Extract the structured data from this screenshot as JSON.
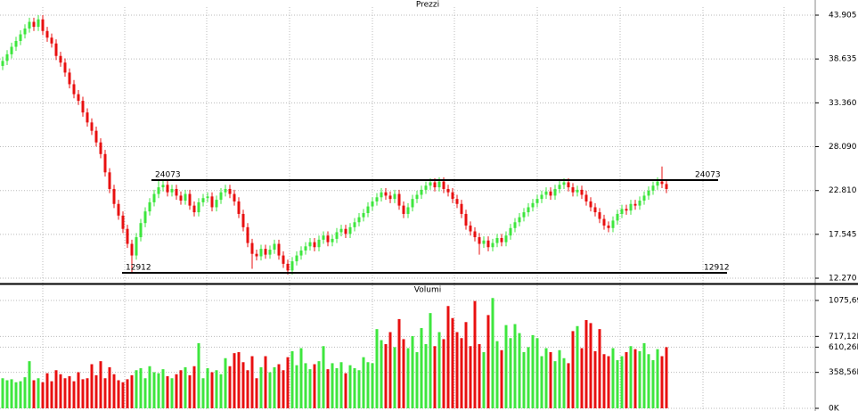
{
  "chart_data": [
    {
      "type": "candlestick",
      "title": "Prezzi",
      "open": [
        37.8,
        38.4,
        39.2,
        40.1,
        40.8,
        41.6,
        42.3,
        43.1,
        42.5,
        43.4,
        42.0,
        41.2,
        40.5,
        39.0,
        38.2,
        37.0,
        35.6,
        34.4,
        33.6,
        32.2,
        31.0,
        30.0,
        28.6,
        27.2,
        25.0,
        23.0,
        21.2,
        19.8,
        18.2,
        16.4,
        15.0,
        17.2,
        18.9,
        20.3,
        21.4,
        22.4,
        23.2,
        23.5,
        22.6,
        23.0,
        22.2,
        21.6,
        22.4,
        21.0,
        20.2,
        21.4,
        21.9,
        22.1,
        20.8,
        21.7,
        22.6,
        23.0,
        22.4,
        21.5,
        20.0,
        18.4,
        16.5,
        15.2,
        14.9,
        15.8,
        15.1,
        15.7,
        16.4,
        15.0,
        14.0,
        13.2,
        14.3,
        15.0,
        15.6,
        16.1,
        16.6,
        16.0,
        16.9,
        17.4,
        16.6,
        17.0,
        17.8,
        18.2,
        17.6,
        18.4,
        19.0,
        19.6,
        20.1,
        20.9,
        21.5,
        22.0,
        22.6,
        22.2,
        21.8,
        22.4,
        21.0,
        20.0,
        20.8,
        21.8,
        22.3,
        22.9,
        23.4,
        23.8,
        23.2,
        23.9,
        23.0,
        22.6,
        21.8,
        21.2,
        20.0,
        18.6,
        17.9,
        17.2,
        16.4,
        16.8,
        16.0,
        16.5,
        17.1,
        16.6,
        17.4,
        18.3,
        19.0,
        19.6,
        20.2,
        20.8,
        21.3,
        21.8,
        22.3,
        22.7,
        22.2,
        23.0,
        23.5,
        23.8,
        23.2,
        22.6,
        22.9,
        22.3,
        21.5,
        20.8,
        20.2,
        19.4,
        18.6,
        18.3,
        19.2,
        20.0,
        20.6,
        20.4,
        21.2,
        21.0,
        21.6,
        22.2,
        22.8,
        23.4,
        23.9,
        23.6
      ],
      "high": [
        38.9,
        39.7,
        40.6,
        41.3,
        42.1,
        42.8,
        43.6,
        43.6,
        43.9,
        43.9,
        42.5,
        41.7,
        41.0,
        39.5,
        38.7,
        37.5,
        36.1,
        34.9,
        34.1,
        32.7,
        31.5,
        30.5,
        29.1,
        27.7,
        25.5,
        23.5,
        21.7,
        20.3,
        18.7,
        16.9,
        17.7,
        19.4,
        20.8,
        21.9,
        22.9,
        24.1,
        24.1,
        24.0,
        23.5,
        23.5,
        22.7,
        22.9,
        22.9,
        21.5,
        21.9,
        22.4,
        22.6,
        22.6,
        22.2,
        23.1,
        23.5,
        23.5,
        22.9,
        22.0,
        20.5,
        18.9,
        17.0,
        15.7,
        16.3,
        16.3,
        16.2,
        16.9,
        16.9,
        15.5,
        14.5,
        14.8,
        15.5,
        16.1,
        16.6,
        17.1,
        17.1,
        17.4,
        17.9,
        17.9,
        17.5,
        18.3,
        18.7,
        18.7,
        18.9,
        19.5,
        20.1,
        20.6,
        21.4,
        22.0,
        22.5,
        23.1,
        23.1,
        22.7,
        22.9,
        22.9,
        21.5,
        21.3,
        22.3,
        22.8,
        23.4,
        23.9,
        24.3,
        24.3,
        24.4,
        24.4,
        23.5,
        23.1,
        22.3,
        21.7,
        20.5,
        19.1,
        18.4,
        17.7,
        17.3,
        17.3,
        17.0,
        17.6,
        17.6,
        17.9,
        18.8,
        19.5,
        20.1,
        20.7,
        21.3,
        21.8,
        22.3,
        22.8,
        23.2,
        23.2,
        23.5,
        24.0,
        24.3,
        24.3,
        23.7,
        23.4,
        23.4,
        22.8,
        22.0,
        21.3,
        20.7,
        19.9,
        19.1,
        19.7,
        20.5,
        21.1,
        21.1,
        21.7,
        21.7,
        22.1,
        22.7,
        23.3,
        23.9,
        24.4,
        25.7,
        24.1
      ],
      "low": [
        37.3,
        37.9,
        38.7,
        39.6,
        40.3,
        41.1,
        41.8,
        42.0,
        42.0,
        41.5,
        40.7,
        40.0,
        38.5,
        37.7,
        36.5,
        35.1,
        33.9,
        33.1,
        31.7,
        30.5,
        29.5,
        28.1,
        26.7,
        24.5,
        22.5,
        20.7,
        19.3,
        17.7,
        15.9,
        12.9,
        14.5,
        16.7,
        18.4,
        19.8,
        20.9,
        21.9,
        22.7,
        22.1,
        22.1,
        21.7,
        21.1,
        21.1,
        20.5,
        19.7,
        19.7,
        20.9,
        21.4,
        20.3,
        20.3,
        21.2,
        22.1,
        21.9,
        21.0,
        19.5,
        17.9,
        16.0,
        13.4,
        14.4,
        14.4,
        14.6,
        14.6,
        15.2,
        14.5,
        13.5,
        12.7,
        12.7,
        13.8,
        14.5,
        15.1,
        15.6,
        15.5,
        15.5,
        16.4,
        16.1,
        16.1,
        16.5,
        17.3,
        17.1,
        17.1,
        17.9,
        18.5,
        19.1,
        19.6,
        20.4,
        21.0,
        21.5,
        21.7,
        21.3,
        21.3,
        20.5,
        19.5,
        19.5,
        20.3,
        21.3,
        21.8,
        22.4,
        22.9,
        22.7,
        22.7,
        22.5,
        22.1,
        21.3,
        20.7,
        19.5,
        18.1,
        17.4,
        16.7,
        15.1,
        15.9,
        15.5,
        15.5,
        16.0,
        16.1,
        16.1,
        16.9,
        17.8,
        18.5,
        19.1,
        19.7,
        20.3,
        20.8,
        21.3,
        21.8,
        21.7,
        21.7,
        22.5,
        23.0,
        22.7,
        22.1,
        22.1,
        21.8,
        21.0,
        20.3,
        19.7,
        18.9,
        18.1,
        17.8,
        17.8,
        18.7,
        19.5,
        19.9,
        19.9,
        20.5,
        20.5,
        21.1,
        21.7,
        22.3,
        22.9,
        23.1,
        22.5
      ],
      "close": [
        38.4,
        39.2,
        40.1,
        40.8,
        41.6,
        42.3,
        43.1,
        42.5,
        43.4,
        42.0,
        41.2,
        40.5,
        39.0,
        38.2,
        37.0,
        35.6,
        34.4,
        33.6,
        32.2,
        31.0,
        30.0,
        28.6,
        27.2,
        25.0,
        23.0,
        21.2,
        19.8,
        18.2,
        16.4,
        15.0,
        17.2,
        18.9,
        20.3,
        21.4,
        22.4,
        23.2,
        23.5,
        22.6,
        23.0,
        22.2,
        21.6,
        22.4,
        21.0,
        20.2,
        21.4,
        21.9,
        22.1,
        20.8,
        21.7,
        22.6,
        23.0,
        22.4,
        21.5,
        20.0,
        18.4,
        16.5,
        15.2,
        14.9,
        15.8,
        15.1,
        15.7,
        16.4,
        15.0,
        14.0,
        13.2,
        14.3,
        15.0,
        15.6,
        16.1,
        16.6,
        16.0,
        16.9,
        17.4,
        16.6,
        17.0,
        17.8,
        18.2,
        17.6,
        18.4,
        19.0,
        19.6,
        20.1,
        20.9,
        21.5,
        22.0,
        22.6,
        22.2,
        21.8,
        22.4,
        21.0,
        20.0,
        20.8,
        21.8,
        22.3,
        22.9,
        23.4,
        23.8,
        23.2,
        23.9,
        23.0,
        22.6,
        21.8,
        21.2,
        20.0,
        18.6,
        17.9,
        17.2,
        16.4,
        16.8,
        16.0,
        16.5,
        17.1,
        16.6,
        17.4,
        18.3,
        19.0,
        19.6,
        20.2,
        20.8,
        21.3,
        21.8,
        22.3,
        22.7,
        22.2,
        23.0,
        23.5,
        23.8,
        23.2,
        22.6,
        22.9,
        22.3,
        21.5,
        20.8,
        20.2,
        19.4,
        18.6,
        18.3,
        19.2,
        20.0,
        20.6,
        20.4,
        21.2,
        21.0,
        21.6,
        22.2,
        22.8,
        23.4,
        23.9,
        23.6,
        23.0
      ],
      "up_color": "#3ee63e",
      "down_color": "#e81010",
      "ylim": [
        11.63,
        44.87
      ],
      "yticks": [
        {
          "value": 12.27,
          "label": "12.270"
        },
        17.545,
        {
          "value": 22.81,
          "label": "22.810"
        },
        {
          "value": 28.09,
          "label": "28.090"
        },
        {
          "value": 33.36,
          "label": "33.360"
        },
        38.635,
        43.905
      ],
      "grid": true,
      "lines": [
        {
          "value": 24.073,
          "label": "24073"
        },
        {
          "value": 12.912,
          "label": "12912"
        }
      ]
    },
    {
      "type": "bar",
      "title": "Volumi",
      "values": [
        300,
        280,
        290,
        260,
        270,
        310,
        470,
        280,
        300,
        260,
        350,
        270,
        380,
        340,
        300,
        320,
        270,
        360,
        290,
        300,
        440,
        330,
        470,
        300,
        410,
        340,
        280,
        260,
        290,
        330,
        380,
        400,
        300,
        420,
        360,
        350,
        390,
        320,
        300,
        340,
        380,
        410,
        330,
        420,
        650,
        300,
        400,
        360,
        380,
        340,
        500,
        420,
        550,
        560,
        460,
        380,
        520,
        300,
        410,
        520,
        360,
        410,
        440,
        380,
        510,
        570,
        430,
        600,
        450,
        390,
        440,
        470,
        620,
        390,
        450,
        400,
        460,
        350,
        430,
        400,
        380,
        510,
        460,
        450,
        790,
        680,
        640,
        760,
        610,
        890,
        690,
        600,
        720,
        560,
        800,
        640,
        950,
        620,
        760,
        690,
        1020,
        900,
        760,
        700,
        860,
        620,
        1070,
        640,
        560,
        930,
        1100,
        670,
        580,
        830,
        700,
        840,
        750,
        560,
        610,
        730,
        700,
        520,
        600,
        560,
        470,
        580,
        500,
        450,
        770,
        820,
        600,
        880,
        850,
        570,
        790,
        540,
        520,
        600,
        480,
        520,
        560,
        620,
        590,
        570,
        650,
        540,
        480,
        590,
        520,
        610
      ],
      "up_color": "#3ee63e",
      "down_color": "#e81010",
      "ylim": [
        0,
        1138
      ],
      "yticks": [
        {
          "value": 0,
          "label": "0K"
        },
        {
          "value": 358.56,
          "label": "358,56K"
        },
        {
          "value": 610.26,
          "label": "610,26K"
        },
        {
          "value": 717.12,
          "label": "717,12K"
        },
        {
          "value": 1075.69,
          "label": "1075,69K"
        }
      ],
      "grid": true
    }
  ]
}
